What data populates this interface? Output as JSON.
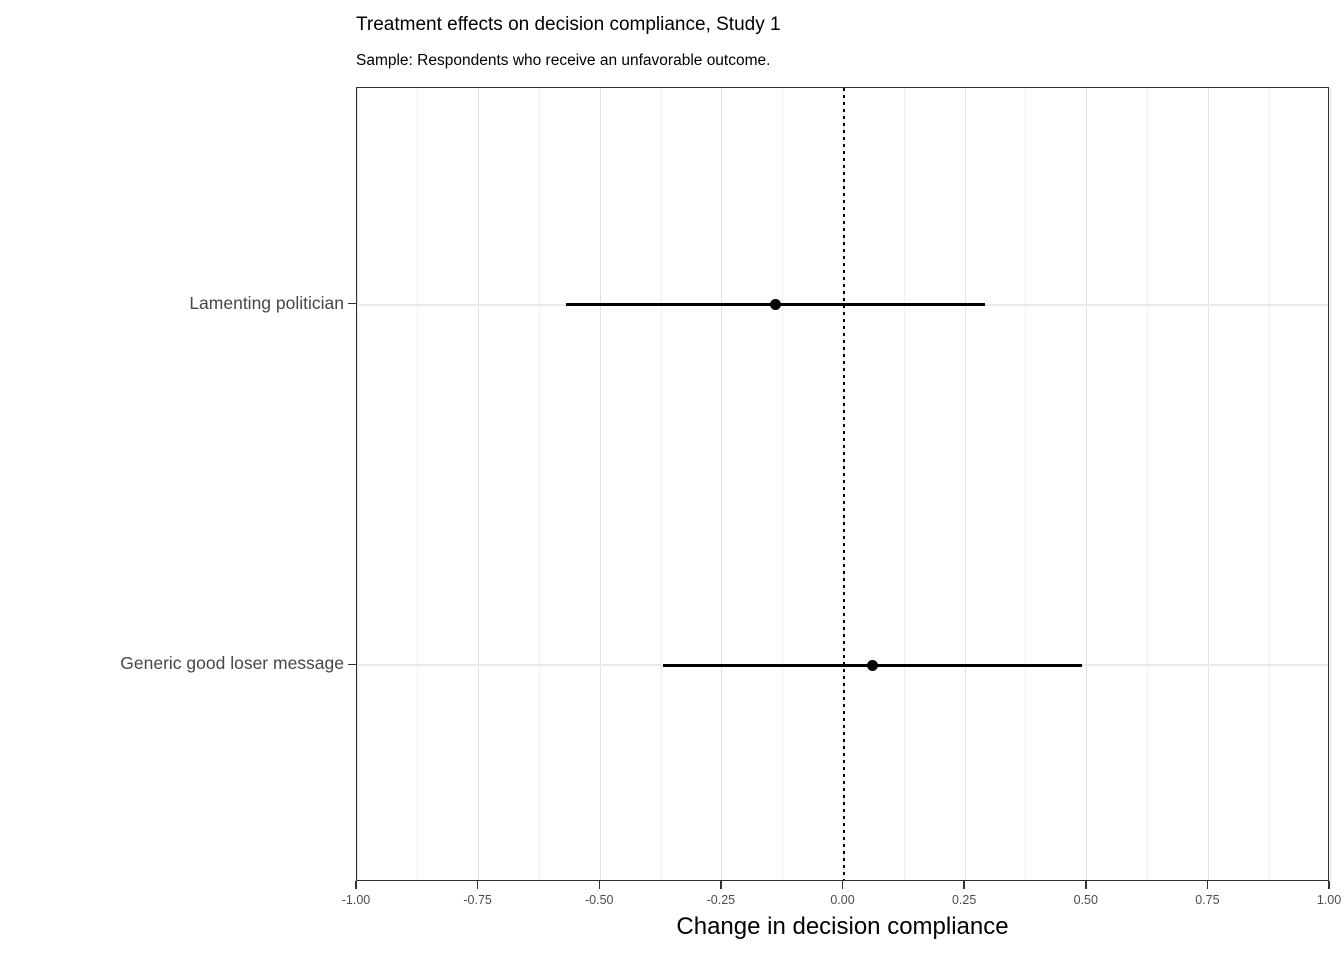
{
  "header": {
    "title": "Treatment effects on decision compliance, Study 1",
    "subtitle": "Sample: Respondents who receive an unfavorable outcome."
  },
  "chart_data": {
    "type": "scatter",
    "subtype": "coefficient-dot-whisker",
    "title": "Treatment effects on decision compliance, Study 1",
    "subtitle": "Sample: Respondents who receive an unfavorable outcome.",
    "xlabel": "Change in decision compliance",
    "ylabel": "",
    "xlim": [
      -1.0,
      1.0
    ],
    "x_tick_values": [
      -1.0,
      -0.75,
      -0.5,
      -0.25,
      0.0,
      0.25,
      0.5,
      0.75,
      1.0
    ],
    "x_tick_labels": [
      "-1.00",
      "-0.75",
      "-0.50",
      "-0.25",
      "0.00",
      "0.25",
      "0.50",
      "0.75",
      "1.00"
    ],
    "x_minor_tick_values": [
      -0.875,
      -0.625,
      -0.375,
      -0.125,
      0.125,
      0.375,
      0.625,
      0.875
    ],
    "reference_line": {
      "x": 0.0,
      "style": "dotted",
      "color": "#000000"
    },
    "grid": true,
    "legend_position": "none",
    "series": [
      {
        "name": "Lamenting politician",
        "estimate": -0.14,
        "ci_low": -0.57,
        "ci_high": 0.29
      },
      {
        "name": "Generic good loser message",
        "estimate": 0.06,
        "ci_low": -0.37,
        "ci_high": 0.49
      }
    ],
    "colors": {
      "point": "#000000",
      "ci_line": "#000000",
      "panel_border": "#2f2f2f",
      "grid_major": "#e3e3e3",
      "grid_minor": "#f0f0f0",
      "axis_text": "#4d4d4d"
    }
  }
}
